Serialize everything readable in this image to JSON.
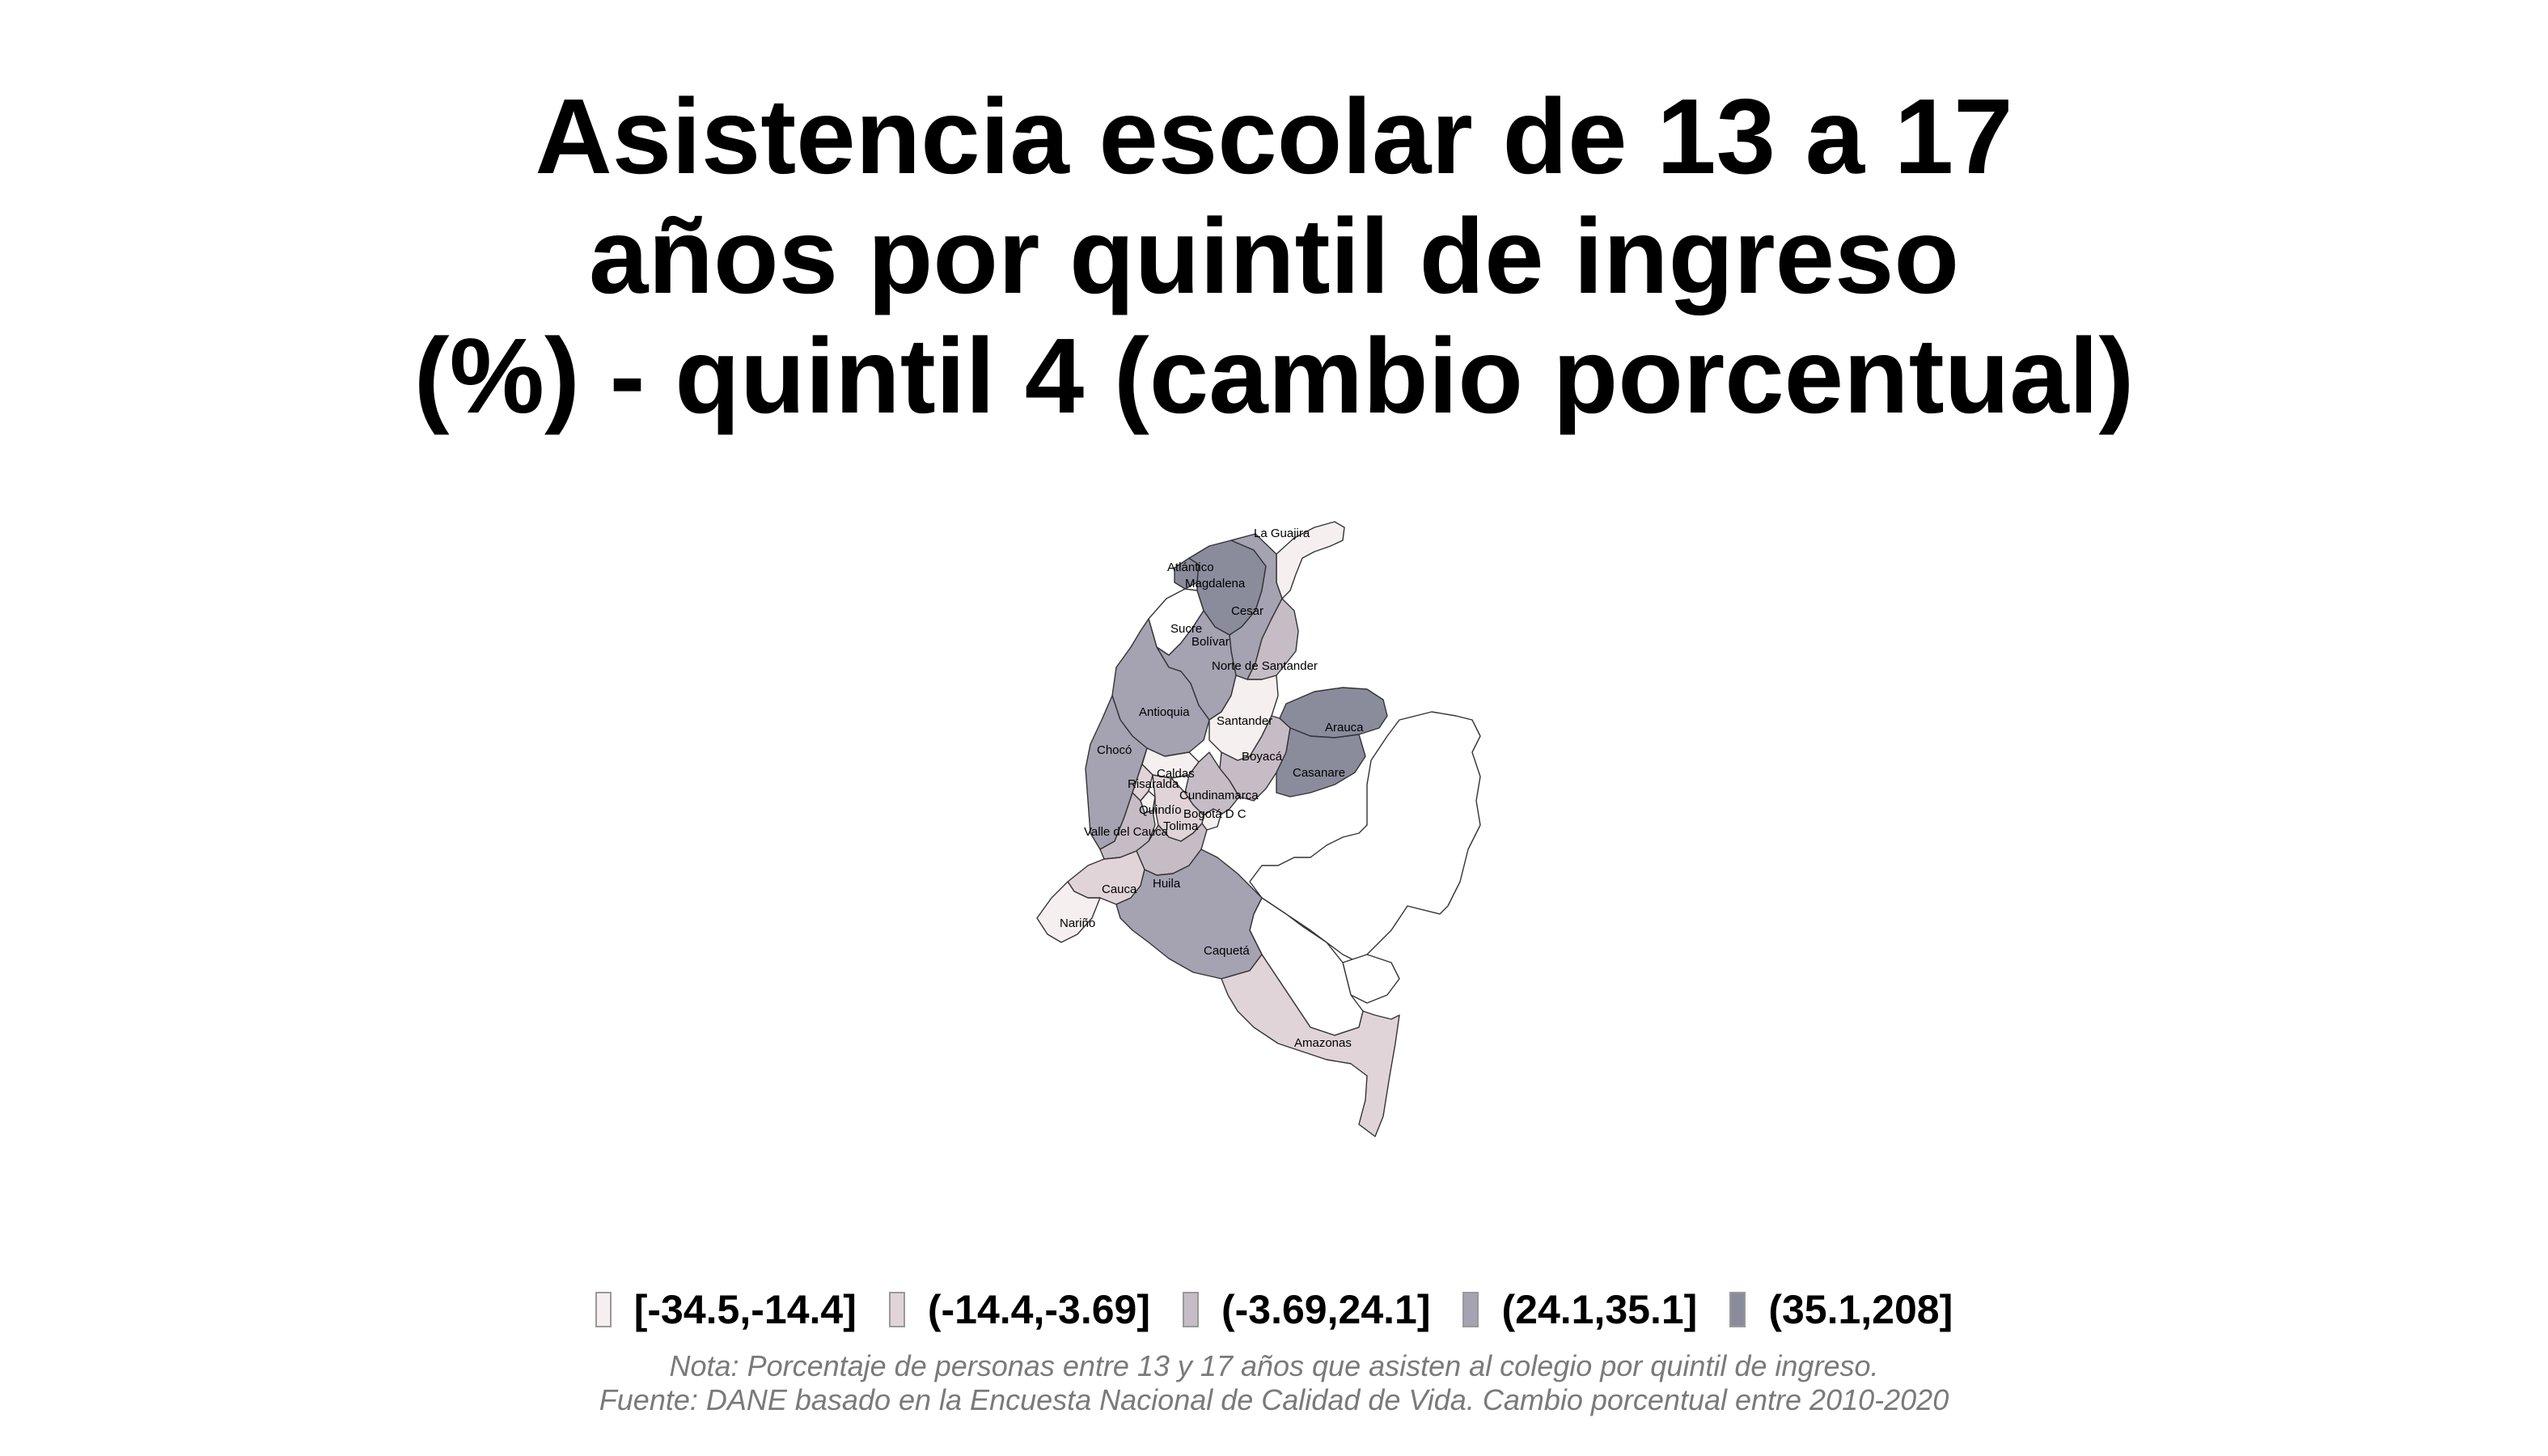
{
  "title": {
    "line1": "Asistencia escolar de 13 a 17",
    "line2": "años por quintil de ingreso",
    "line3": "(%) - quintil 4 (cambio porcentual)"
  },
  "colors": {
    "class1": "#f6eff0",
    "class2": "#e1d4d8",
    "class3": "#c6bcc6",
    "class4": "#a5a2b2",
    "class5": "#8a8c9c",
    "nodata": "#ffffff"
  },
  "regions": [
    {
      "name": "La Guajira",
      "class": 1
    },
    {
      "name": "Atlántico",
      "class": 5
    },
    {
      "name": "Magdalena",
      "class": 5
    },
    {
      "name": "Cesar",
      "class": 4
    },
    {
      "name": "Sucre",
      "class": 0
    },
    {
      "name": "Bolívar",
      "class": 4
    },
    {
      "name": "Norte de Santander",
      "class": 3
    },
    {
      "name": "Antioquia",
      "class": 4
    },
    {
      "name": "Santander",
      "class": 1
    },
    {
      "name": "Arauca",
      "class": 5
    },
    {
      "name": "Chocó",
      "class": 4
    },
    {
      "name": "Boyacá",
      "class": 3
    },
    {
      "name": "Caldas",
      "class": 1
    },
    {
      "name": "Risaralda",
      "class": 2
    },
    {
      "name": "Casanare",
      "class": 5
    },
    {
      "name": "Cundinamarca",
      "class": 3
    },
    {
      "name": "Quindío",
      "class": 1
    },
    {
      "name": "Bogotá D C",
      "class": 1
    },
    {
      "name": "Tolima",
      "class": 2
    },
    {
      "name": "Valle del Cauca",
      "class": 3
    },
    {
      "name": "Huila",
      "class": 3
    },
    {
      "name": "Cauca",
      "class": 2
    },
    {
      "name": "Nariño",
      "class": 1
    },
    {
      "name": "Caquetá",
      "class": 4
    },
    {
      "name": "Amazonas",
      "class": 2
    }
  ],
  "legend": [
    {
      "label": "[-34.5,-14.4]",
      "class": 1
    },
    {
      "label": "(-14.4,-3.69]",
      "class": 2
    },
    {
      "label": "(-3.69,24.1]",
      "class": 3
    },
    {
      "label": "(24.1,35.1]",
      "class": 4
    },
    {
      "label": "(35.1,208]",
      "class": 5
    }
  ],
  "notes": {
    "nota": "Nota: Porcentaje de personas entre 13 y 17 años que asisten al colegio por quintil de ingreso.",
    "fuente": "Fuente: DANE basado en la Encuesta Nacional de Calidad de Vida. Cambio porcentual entre 2010-2020"
  }
}
